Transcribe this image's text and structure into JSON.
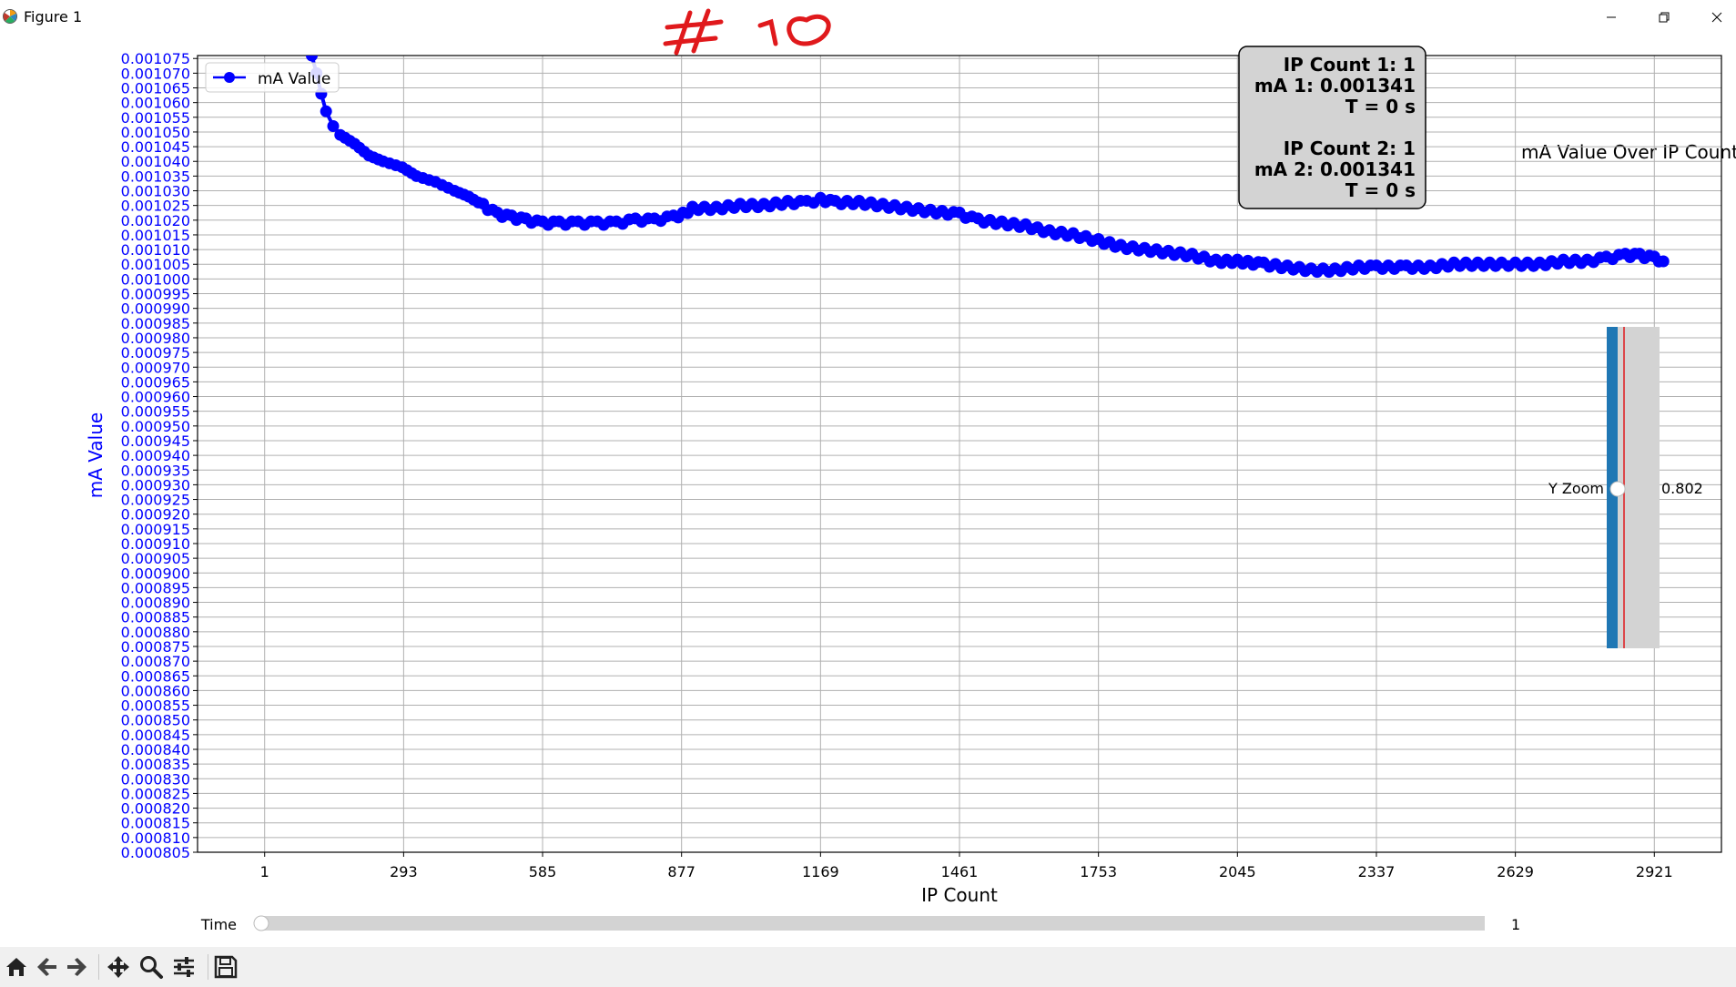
{
  "window": {
    "title": "Figure 1",
    "icons": {
      "app": "matplotlib-icon",
      "minimize": "minimize-icon",
      "restore": "restore-icon",
      "close": "close-icon"
    }
  },
  "annotation": {
    "handwritten_text": "# 10",
    "color": "#e0191c"
  },
  "chart_data": {
    "type": "line",
    "title": "mA Value Over IP Count",
    "xlabel": "IP Count",
    "ylabel": "mA Value",
    "xticks": [
      1,
      293,
      585,
      877,
      1169,
      1461,
      1753,
      2045,
      2337,
      2629,
      2921
    ],
    "xlim": [
      -140,
      3062
    ],
    "ylim": [
      0.000805,
      0.001076
    ],
    "ytick_step": 5e-06,
    "grid": true,
    "legend_location": "upper left",
    "series": [
      {
        "name": "mA Value",
        "color": "#0000ff",
        "marker": "o",
        "points": [
          [
            70,
            0.001341
          ],
          [
            100,
            0.001076
          ],
          [
            110,
            0.00107
          ],
          [
            120,
            0.001063
          ],
          [
            130,
            0.001057
          ],
          [
            145,
            0.001052
          ],
          [
            160,
            0.001049
          ],
          [
            190,
            0.001046
          ],
          [
            220,
            0.001042
          ],
          [
            250,
            0.00104
          ],
          [
            290,
            0.001038
          ],
          [
            320,
            0.001035
          ],
          [
            360,
            0.001033
          ],
          [
            400,
            0.00103
          ],
          [
            430,
            0.001028
          ],
          [
            460,
            0.001025
          ],
          [
            490,
            0.001022
          ],
          [
            520,
            0.001021
          ],
          [
            550,
            0.00102
          ],
          [
            585,
            0.001019
          ],
          [
            620,
            0.001019
          ],
          [
            660,
            0.001019
          ],
          [
            700,
            0.001019
          ],
          [
            740,
            0.001019
          ],
          [
            780,
            0.00102
          ],
          [
            820,
            0.00102
          ],
          [
            860,
            0.001021
          ],
          [
            880,
            0.001022
          ],
          [
            900,
            0.001024
          ],
          [
            950,
            0.001024
          ],
          [
            1000,
            0.001025
          ],
          [
            1050,
            0.001025
          ],
          [
            1100,
            0.001026
          ],
          [
            1140,
            0.001026
          ],
          [
            1169,
            0.001027
          ],
          [
            1200,
            0.001026
          ],
          [
            1250,
            0.001026
          ],
          [
            1300,
            0.001025
          ],
          [
            1350,
            0.001024
          ],
          [
            1400,
            0.001023
          ],
          [
            1461,
            0.001022
          ],
          [
            1500,
            0.00102
          ],
          [
            1550,
            0.001019
          ],
          [
            1600,
            0.001018
          ],
          [
            1650,
            0.001016
          ],
          [
            1700,
            0.001015
          ],
          [
            1753,
            0.001013
          ],
          [
            1800,
            0.001011
          ],
          [
            1850,
            0.00101
          ],
          [
            1900,
            0.001009
          ],
          [
            1950,
            0.001008
          ],
          [
            2000,
            0.001006
          ],
          [
            2045,
            0.001006
          ],
          [
            2100,
            0.001005
          ],
          [
            2150,
            0.001004
          ],
          [
            2200,
            0.001003
          ],
          [
            2250,
            0.001003
          ],
          [
            2300,
            0.001004
          ],
          [
            2337,
            0.001004
          ],
          [
            2400,
            0.001004
          ],
          [
            2450,
            0.001004
          ],
          [
            2500,
            0.001005
          ],
          [
            2550,
            0.001005
          ],
          [
            2600,
            0.001005
          ],
          [
            2629,
            0.001005
          ],
          [
            2680,
            0.001005
          ],
          [
            2730,
            0.001006
          ],
          [
            2780,
            0.001006
          ],
          [
            2820,
            0.001007
          ],
          [
            2860,
            0.001008
          ],
          [
            2890,
            0.001008
          ],
          [
            2921,
            0.001007
          ],
          [
            2940,
            0.001006
          ]
        ]
      }
    ]
  },
  "info_box": {
    "lines": [
      "IP Count 1: 1",
      "mA 1: 0.001341",
      "T = 0 s",
      "",
      "IP Count 2: 1",
      "mA 2: 0.001341",
      "T = 0 s"
    ]
  },
  "y_zoom": {
    "label": "Y Zoom",
    "value": 0.802,
    "value_text": "0.802"
  },
  "time_slider": {
    "label": "Time",
    "value": 1,
    "value_text": "1"
  },
  "toolbar": {
    "buttons": [
      "home-icon",
      "back-icon",
      "forward-icon",
      "pan-icon",
      "zoom-icon",
      "configure-subplots-icon",
      "save-icon"
    ]
  }
}
